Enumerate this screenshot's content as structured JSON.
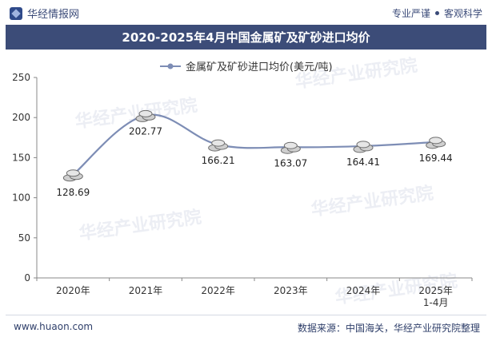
{
  "header": {
    "brand": "华经情报网",
    "tagline_left": "专业严谨",
    "tagline_right": "客观科学"
  },
  "title": "2020-2025年4月中国金属矿及矿砂进口均价",
  "footer": {
    "site": "www.huaon.com",
    "source": "数据来源：中国海关，华经产业研究院整理"
  },
  "watermark": "华经产业研究院",
  "chart_data": {
    "type": "line",
    "title": "2020-2025年4月中国金属矿及矿砂进口均价",
    "categories": [
      "2020年",
      "2021年",
      "2022年",
      "2023年",
      "2024年",
      "2025年\n1-4月"
    ],
    "series": [
      {
        "name": "金属矿及矿砂进口均价(美元/吨)",
        "values": [
          128.69,
          202.77,
          166.21,
          163.07,
          164.41,
          169.44
        ],
        "color": "#7d8db5"
      }
    ],
    "ylim": [
      0,
      250
    ],
    "yticks": [
      0,
      50,
      100,
      150,
      200,
      250
    ],
    "xlabel": "",
    "ylabel": "",
    "legend": "top-center",
    "grid": false
  }
}
